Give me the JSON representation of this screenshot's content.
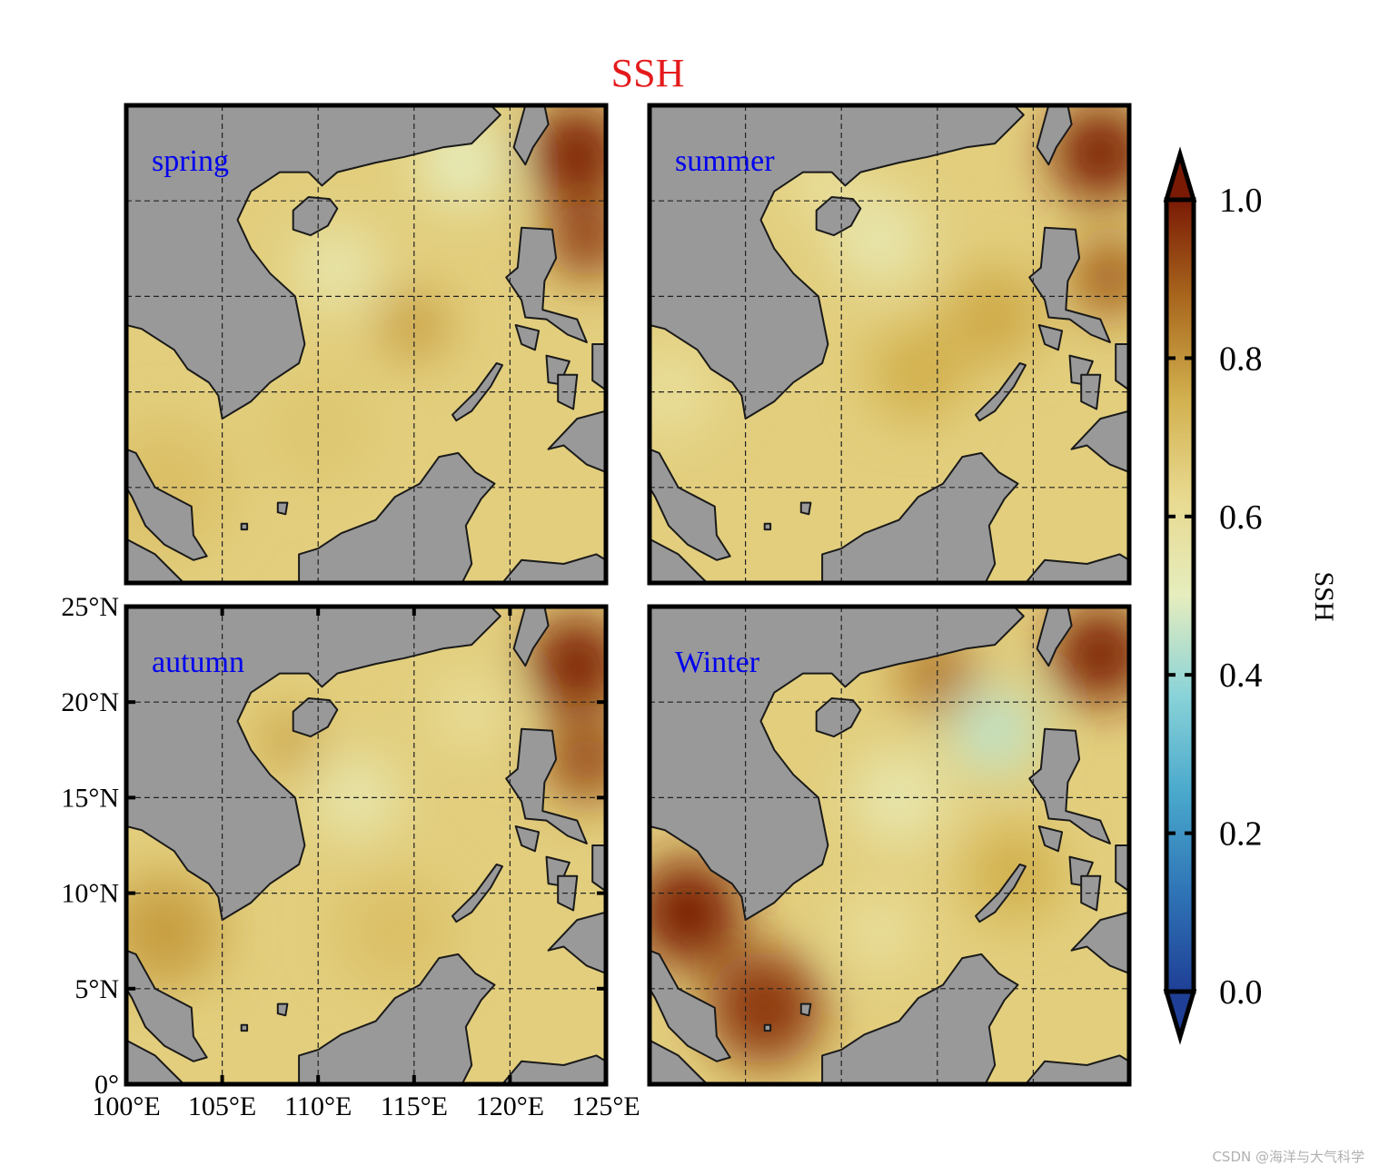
{
  "chart_data": {
    "type": "heatmap",
    "title": "SSH",
    "colors": {
      "title": "#e41a1c",
      "panel_label": "#0000ee",
      "land": "#999999"
    },
    "panels": [
      {
        "label": "spring",
        "blobs": [
          {
            "lon": 117.5,
            "lat": 22.0,
            "v": 0.5,
            "r": 2.2
          },
          {
            "lon": 111.0,
            "lat": 16.5,
            "v": 0.55,
            "r": 2.2
          },
          {
            "lon": 115.0,
            "lat": 13.5,
            "v": 0.78,
            "r": 1.8
          },
          {
            "lon": 123.5,
            "lat": 22.5,
            "v": 1.0,
            "r": 2.5
          },
          {
            "lon": 124.0,
            "lat": 18.0,
            "v": 0.95,
            "r": 2.0
          },
          {
            "lon": 102.0,
            "lat": 5.0,
            "v": 0.7,
            "r": 3.5
          },
          {
            "lon": 110.0,
            "lat": 8.0,
            "v": 0.68,
            "r": 3.0
          }
        ]
      },
      {
        "label": "summer",
        "blobs": [
          {
            "lon": 112.0,
            "lat": 18.0,
            "v": 0.55,
            "r": 2.5
          },
          {
            "lon": 109.0,
            "lat": 21.0,
            "v": 0.6,
            "r": 2.0
          },
          {
            "lon": 114.0,
            "lat": 11.0,
            "v": 0.75,
            "r": 2.5
          },
          {
            "lon": 123.5,
            "lat": 22.5,
            "v": 1.0,
            "r": 2.5
          },
          {
            "lon": 124.0,
            "lat": 16.0,
            "v": 0.9,
            "r": 2.0
          },
          {
            "lon": 101.0,
            "lat": 10.0,
            "v": 0.6,
            "r": 2.5
          },
          {
            "lon": 118.0,
            "lat": 14.0,
            "v": 0.76,
            "r": 2.5
          }
        ]
      },
      {
        "label": "autumn",
        "blobs": [
          {
            "lon": 112.0,
            "lat": 15.0,
            "v": 0.55,
            "r": 2.2
          },
          {
            "lon": 118.0,
            "lat": 19.5,
            "v": 0.6,
            "r": 2.0
          },
          {
            "lon": 123.5,
            "lat": 22.0,
            "v": 1.0,
            "r": 2.5
          },
          {
            "lon": 124.0,
            "lat": 17.0,
            "v": 0.92,
            "r": 2.2
          },
          {
            "lon": 102.0,
            "lat": 8.0,
            "v": 0.78,
            "r": 3.0
          },
          {
            "lon": 108.5,
            "lat": 18.0,
            "v": 0.78,
            "r": 1.5
          },
          {
            "lon": 114.0,
            "lat": 8.0,
            "v": 0.7,
            "r": 3.0
          }
        ]
      },
      {
        "label": "Winter",
        "blobs": [
          {
            "lon": 118.0,
            "lat": 18.5,
            "v": 0.45,
            "r": 2.2
          },
          {
            "lon": 113.0,
            "lat": 15.0,
            "v": 0.55,
            "r": 2.5
          },
          {
            "lon": 112.0,
            "lat": 8.0,
            "v": 0.6,
            "r": 2.2
          },
          {
            "lon": 102.0,
            "lat": 9.0,
            "v": 1.0,
            "r": 2.8
          },
          {
            "lon": 106.0,
            "lat": 4.0,
            "v": 0.95,
            "r": 3.0
          },
          {
            "lon": 123.5,
            "lat": 22.5,
            "v": 1.0,
            "r": 2.5
          },
          {
            "lon": 115.0,
            "lat": 21.5,
            "v": 0.85,
            "r": 2.0
          },
          {
            "lon": 119.0,
            "lat": 11.0,
            "v": 0.75,
            "r": 2.5
          }
        ]
      }
    ],
    "lon_ticks": [
      "100°E",
      "105°E",
      "110°E",
      "115°E",
      "120°E",
      "125°E"
    ],
    "lat_ticks": [
      "0°",
      "5°N",
      "10°N",
      "15°N",
      "20°N",
      "25°N"
    ],
    "lon_range": [
      100,
      125
    ],
    "lat_range": [
      0,
      25
    ],
    "grid": true,
    "colorbar": {
      "label": "SSH",
      "range": [
        0.0,
        1.0
      ],
      "ticks": [
        "0.0",
        "0.2",
        "0.4",
        "0.6",
        "0.8",
        "1.0"
      ],
      "extend": "both",
      "colormap": [
        "#1f3f96",
        "#2f74b6",
        "#49a8cc",
        "#8ad3d8",
        "#e6edbe",
        "#e8d98f",
        "#d2b04e",
        "#a9681e",
        "#7a1a05"
      ]
    }
  },
  "watermark": "CSDN @海洋与大气科学"
}
